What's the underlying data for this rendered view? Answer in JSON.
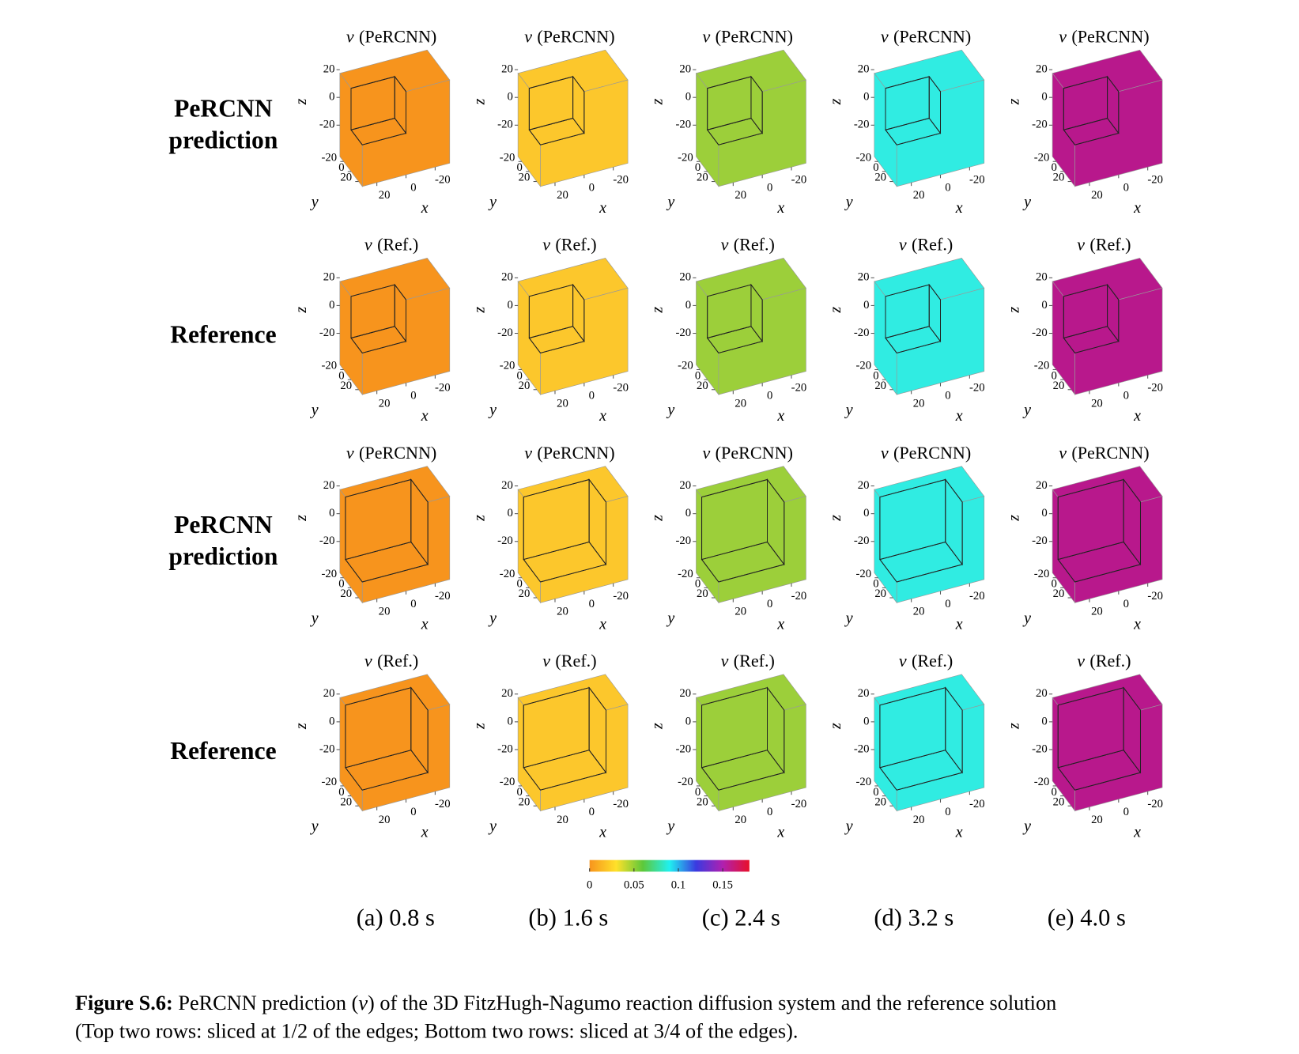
{
  "figure": {
    "rows": [
      {
        "label": [
          "PeRCNN",
          "prediction"
        ],
        "title_var": "v",
        "title_name": "(PeRCNN)",
        "slice": 0.5
      },
      {
        "label": [
          "Reference"
        ],
        "title_var": "v",
        "title_name": "(Ref.)",
        "slice": 0.5
      },
      {
        "label": [
          "PeRCNN",
          "prediction"
        ],
        "title_var": "v",
        "title_name": "(PeRCNN)",
        "slice": 0.75
      },
      {
        "label": [
          "Reference"
        ],
        "title_var": "v",
        "title_name": "(Ref.)",
        "slice": 0.75
      }
    ],
    "columns": [
      {
        "label": "(a) 0.8 s",
        "color": "#f7941d"
      },
      {
        "label": "(b) 1.6 s",
        "color": "#fcc72c"
      },
      {
        "label": "(c) 2.4 s",
        "color": "#9ccf3a"
      },
      {
        "label": "(d) 3.2 s",
        "color": "#30ece2"
      },
      {
        "label": "(e) 4.0 s",
        "color": "#b8188c"
      }
    ],
    "axes": {
      "xlabel": "x",
      "ylabel": "y",
      "zlabel": "z",
      "lim": [
        -30,
        30
      ],
      "xreverse": true,
      "xticks": [
        20,
        0,
        -20
      ],
      "yticks": [
        -20,
        0,
        20
      ],
      "zticks": [
        20,
        0,
        -20
      ]
    },
    "colorbar": {
      "lim": [
        0,
        0.18
      ],
      "ticks": [
        0,
        0.05,
        0.1,
        0.15
      ],
      "colors": [
        "#f7941d",
        "#ffe12a",
        "#5dc83a",
        "#20f0f0",
        "#3a3ae0",
        "#b020b0",
        "#e8102a"
      ]
    },
    "caption": {
      "label": "Figure S.6:",
      "line1": [
        "PeRCNN prediction (",
        "v",
        ") of the 3D FitzHugh-Nagumo reaction diffusion system and the reference solution"
      ],
      "line2": "(Top two rows: sliced at 1/2 of the edges; Bottom two rows: sliced at 3/4 of the edges)."
    }
  }
}
